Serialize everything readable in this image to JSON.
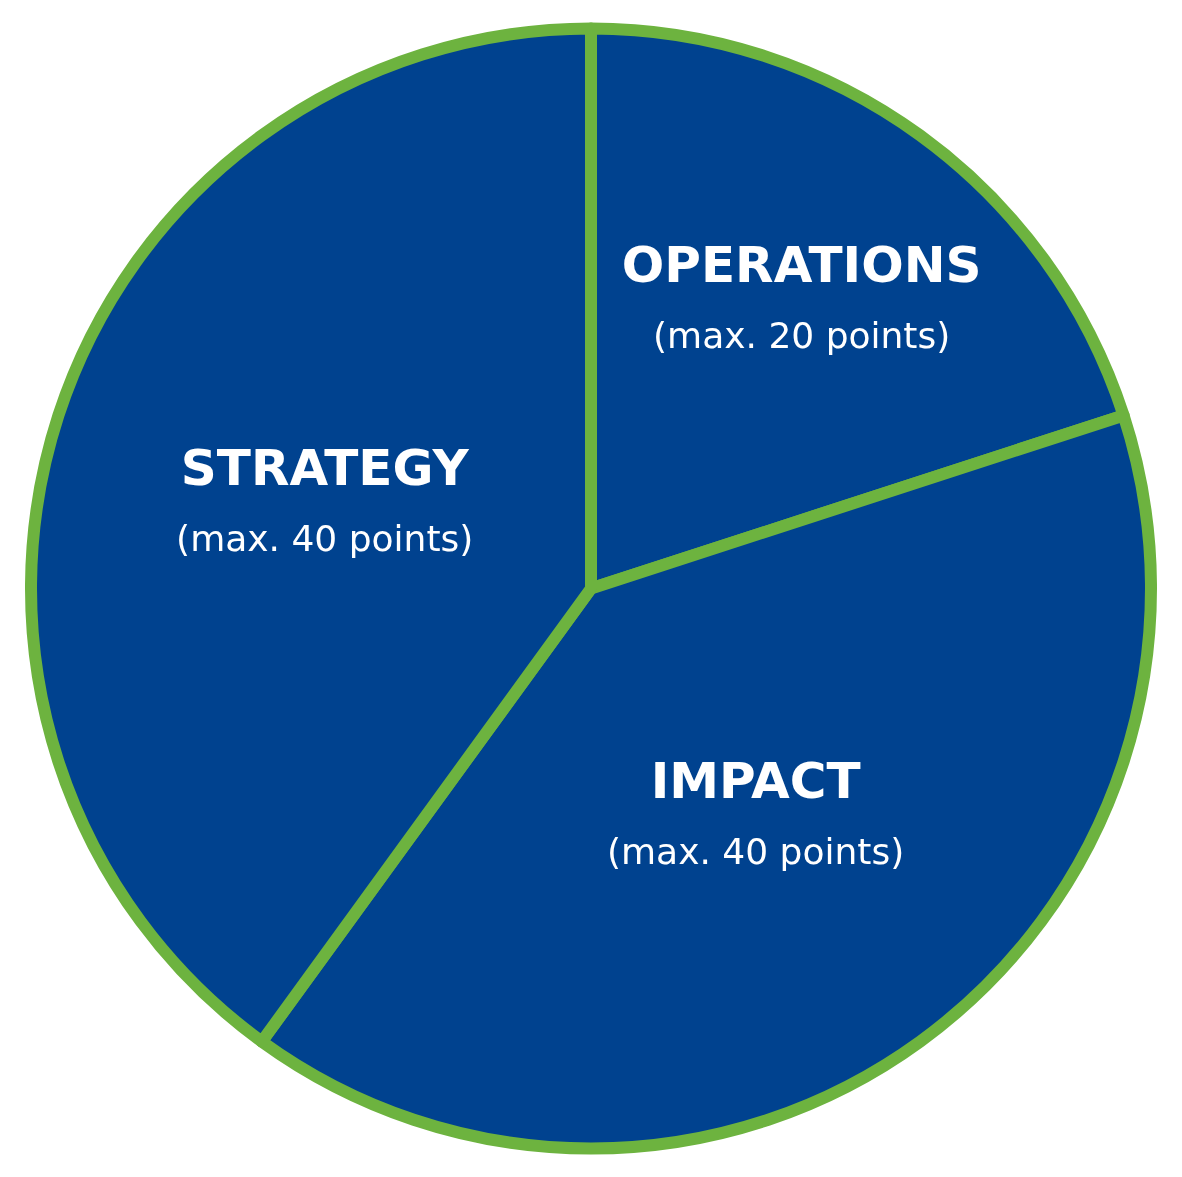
{
  "chart_data": {
    "type": "pie",
    "categories": [
      "OPERATIONS",
      "IMPACT",
      "STRATEGY"
    ],
    "values": [
      20,
      40,
      40
    ],
    "colors": [
      "#00428f",
      "#00428f",
      "#00428f"
    ],
    "value_labels": [
      "(max. 20 points)",
      "(max. 40 points)",
      "(max. 40 points)"
    ],
    "legend": false
  }
}
